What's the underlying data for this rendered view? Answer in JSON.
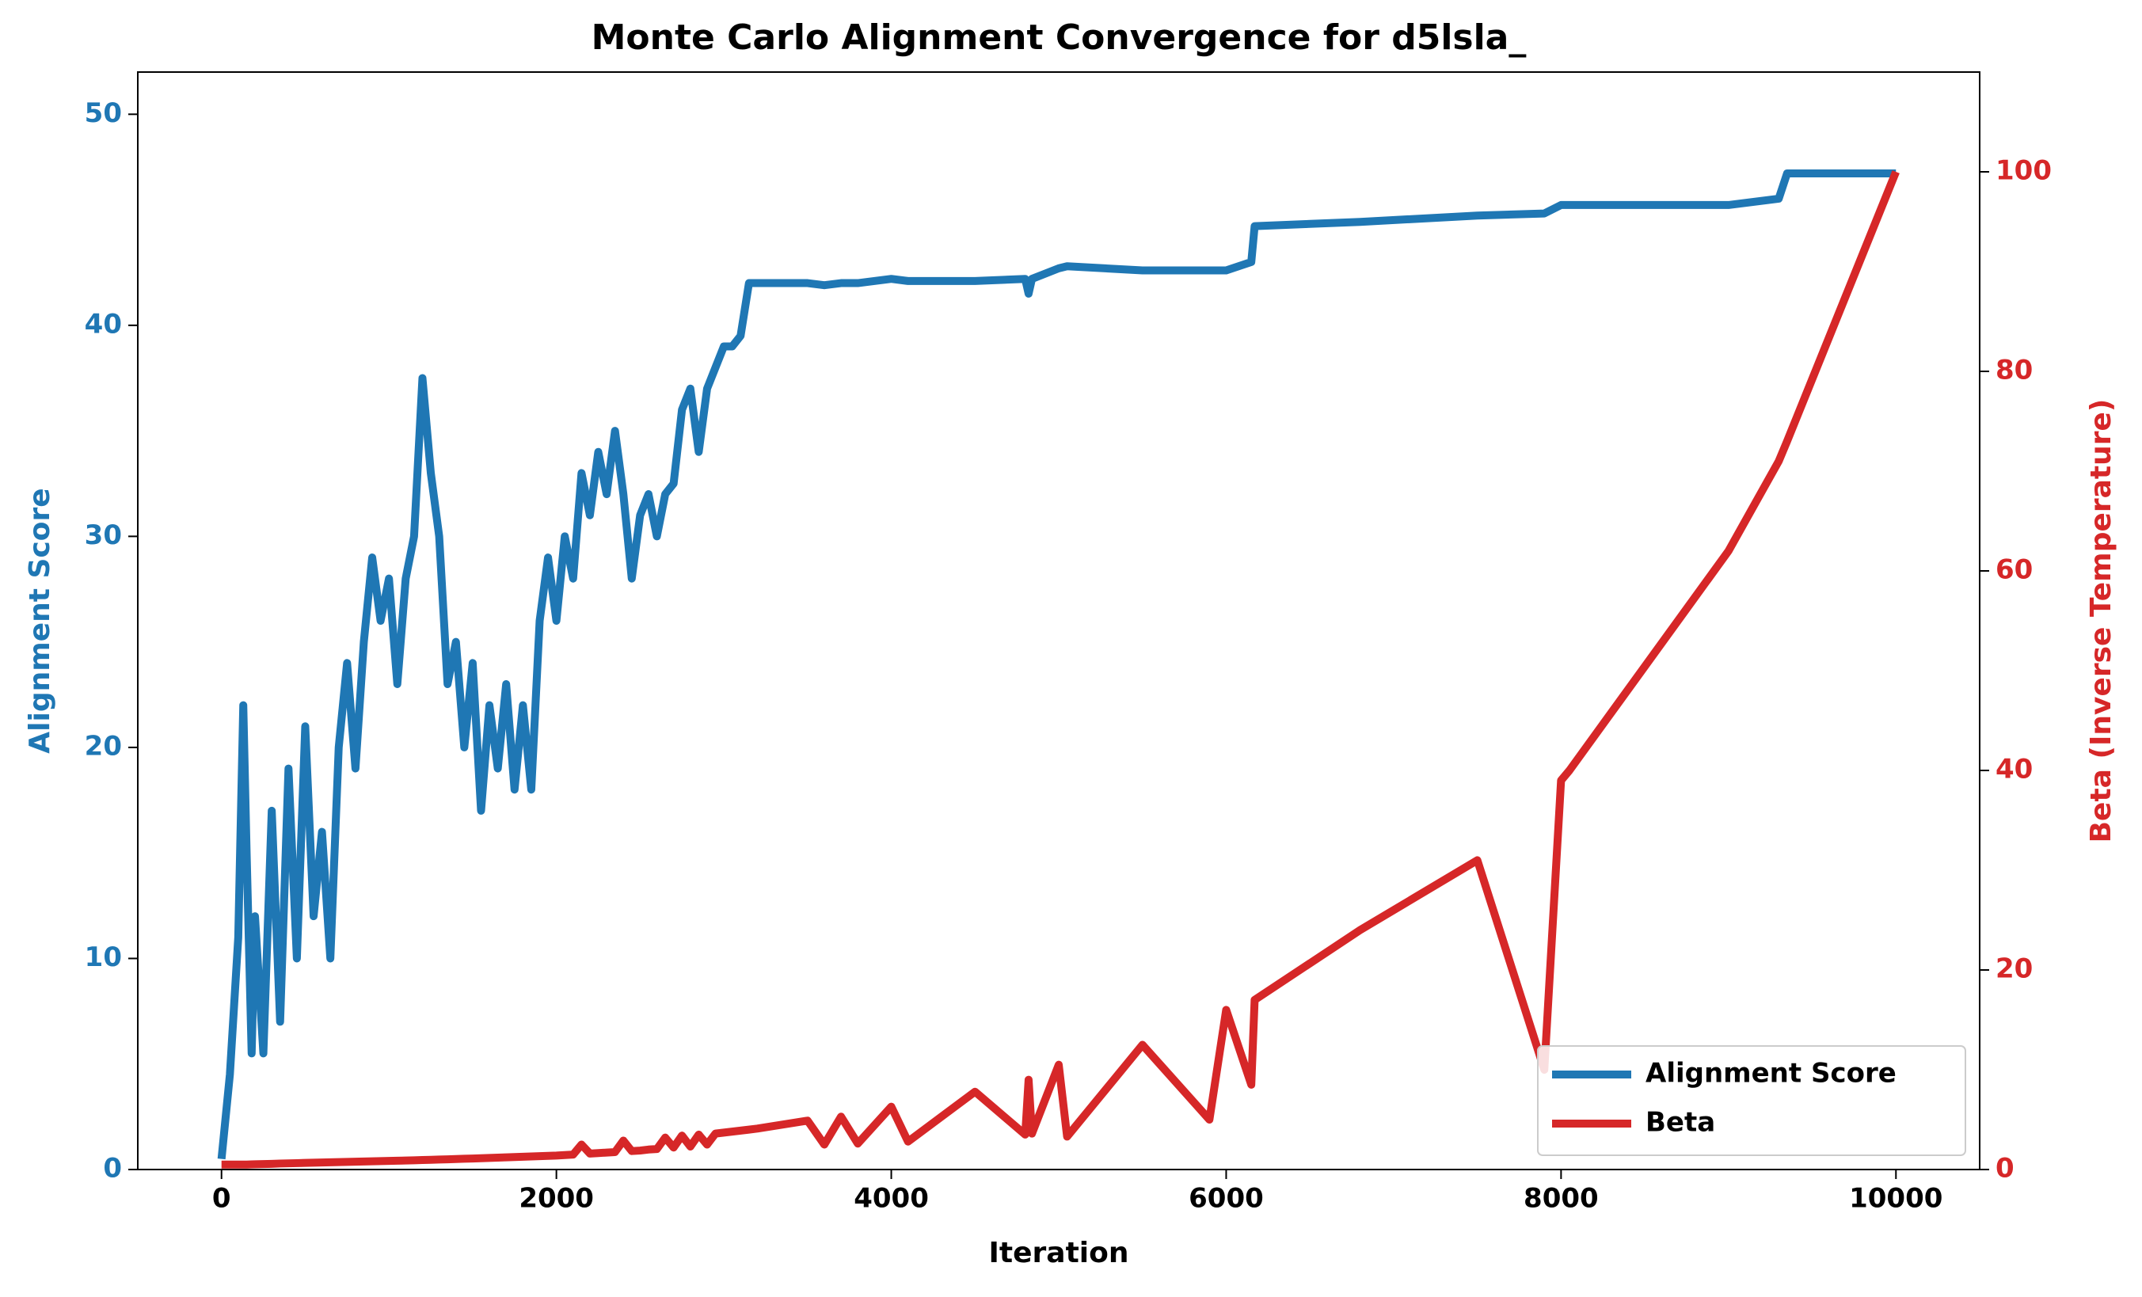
{
  "chart_data": {
    "type": "line",
    "title": "Monte Carlo Alignment Convergence for d5lsla_",
    "x_label": "Iteration",
    "y_label": "Alignment Score",
    "y2_label": "Beta (Inverse Temperature)",
    "x": [
      0,
      50,
      100,
      130,
      150,
      180,
      200,
      250,
      300,
      350,
      400,
      450,
      500,
      550,
      600,
      650,
      700,
      750,
      800,
      850,
      900,
      950,
      1000,
      1050,
      1100,
      1150,
      1200,
      1250,
      1300,
      1350,
      1400,
      1450,
      1500,
      1550,
      1600,
      1650,
      1700,
      1750,
      1800,
      1850,
      1900,
      1950,
      2000,
      2050,
      2100,
      2150,
      2200,
      2250,
      2300,
      2350,
      2400,
      2450,
      2500,
      2550,
      2600,
      2650,
      2700,
      2750,
      2800,
      2850,
      2900,
      2950,
      3000,
      3050,
      3100,
      3150,
      3200,
      3500,
      3600,
      3700,
      3800,
      4000,
      4100,
      4500,
      4800,
      4820,
      4840,
      5000,
      5050,
      5500,
      5900,
      6000,
      6150,
      6170,
      6800,
      7500,
      7900,
      8000,
      8050,
      9000,
      9300,
      9350,
      10000
    ],
    "series": [
      {
        "name": "Alignment Score",
        "color": "#1f77b4",
        "axis": "y",
        "values": [
          0.5,
          4.5,
          11,
          22,
          15,
          5.5,
          12,
          5.5,
          17,
          7,
          19,
          10,
          21,
          12,
          16,
          10,
          20,
          24,
          19,
          25,
          29,
          26,
          28,
          23,
          28,
          30,
          37.5,
          33,
          30,
          23,
          25,
          20,
          24,
          17,
          22,
          19,
          23,
          18,
          22,
          18,
          26,
          29,
          26,
          30,
          28,
          33,
          31,
          34,
          32,
          35,
          32,
          28,
          31,
          32,
          30,
          32,
          32.5,
          36,
          37,
          34,
          37,
          38,
          39,
          39,
          39.5,
          42,
          42,
          42,
          41.9,
          42,
          42,
          42.2,
          42.1,
          42.1,
          42.2,
          41.5,
          42.2,
          42.7,
          42.8,
          42.6,
          42.6,
          42.6,
          43,
          44.7,
          44.9,
          45.2,
          45.3,
          45.7,
          45.7,
          45.7,
          46,
          47.2,
          47.2
        ]
      },
      {
        "name": "Beta",
        "color": "#d62728",
        "axis": "y2",
        "values": [
          0.5,
          0.5,
          0.5,
          0.5,
          0.5,
          0.52,
          0.53,
          0.55,
          0.57,
          0.6,
          0.62,
          0.64,
          0.66,
          0.68,
          0.7,
          0.72,
          0.74,
          0.76,
          0.78,
          0.8,
          0.82,
          0.84,
          0.86,
          0.88,
          0.9,
          0.92,
          0.95,
          0.97,
          1.0,
          1.02,
          1.05,
          1.08,
          1.1,
          1.13,
          1.16,
          1.19,
          1.22,
          1.25,
          1.28,
          1.31,
          1.34,
          1.37,
          1.4,
          1.45,
          1.5,
          2.5,
          1.6,
          1.65,
          1.7,
          1.75,
          2.9,
          1.85,
          1.9,
          2,
          2.05,
          3.2,
          2.2,
          3.4,
          2.3,
          3.5,
          2.5,
          3.6,
          3.7,
          3.8,
          3.9,
          4.0,
          4.1,
          4.9,
          2.5,
          5.3,
          2.6,
          6.3,
          2.8,
          7.8,
          3.5,
          9,
          3.6,
          10.5,
          3.3,
          12.5,
          5,
          16,
          8.5,
          17,
          24,
          31,
          10,
          39,
          40,
          62,
          71,
          73,
          100
        ]
      }
    ],
    "xlim": [
      -500,
      10500
    ],
    "xticks": [
      0,
      2000,
      4000,
      6000,
      8000,
      10000
    ],
    "ylim": [
      0,
      52
    ],
    "yticks": [
      0,
      10,
      20,
      30,
      40,
      50
    ],
    "y2lim": [
      0,
      110
    ],
    "y2ticks": [
      0,
      20,
      40,
      60,
      80,
      100
    ],
    "legend": "lower right"
  }
}
